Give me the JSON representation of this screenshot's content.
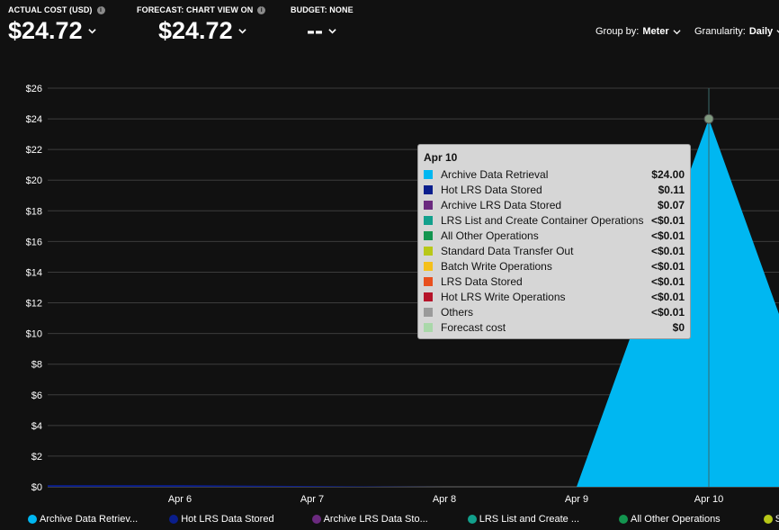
{
  "kpis": [
    {
      "label": "ACTUAL COST (USD)",
      "value": "$24.72",
      "info": true
    },
    {
      "label": "FORECAST: CHART VIEW ON",
      "value": "$24.72",
      "info": true
    },
    {
      "label": "BUDGET: NONE",
      "value": "--",
      "info": false
    }
  ],
  "toolbar": {
    "group_by_label": "Group by:",
    "group_by_value": "Meter",
    "granularity_label": "Granularity:",
    "granularity_value": "Daily"
  },
  "chart_data": {
    "type": "area",
    "y_ticks": [
      "$0",
      "$2",
      "$4",
      "$6",
      "$8",
      "$10",
      "$12",
      "$14",
      "$16",
      "$18",
      "$20",
      "$22",
      "$24",
      "$26"
    ],
    "ylim": [
      0,
      26
    ],
    "x_ticks": [
      "Apr 6",
      "Apr 7",
      "Apr 8",
      "Apr 9",
      "Apr 10"
    ],
    "grid": true,
    "legend_position": "bottom",
    "series": [
      {
        "name": "Archive Data Retrieval",
        "color": "#00b7f1",
        "points": [
          {
            "x": "Apr 9",
            "y": 0
          },
          {
            "x": "Apr 10",
            "y": 24.0
          },
          {
            "x": "Apr 11",
            "y": 0
          }
        ]
      },
      {
        "name": "Hot LRS Data Stored",
        "color": "#0a1e8c",
        "points": [
          {
            "x": "Apr 5",
            "y": 0.11
          },
          {
            "x": "Apr 6",
            "y": 0.11
          },
          {
            "x": "Apr 7",
            "y": 0.05
          },
          {
            "x": "Apr 8",
            "y": 0
          }
        ]
      }
    ],
    "highlight": {
      "x": "Apr 10",
      "y": 24.0
    }
  },
  "tooltip": {
    "title": "Apr 10",
    "rows": [
      {
        "name": "Archive Data Retrieval",
        "value": "$24.00",
        "color": "#00b7f1"
      },
      {
        "name": "Hot LRS Data Stored",
        "value": "$0.11",
        "color": "#0a1e8c"
      },
      {
        "name": "Archive LRS Data Stored",
        "value": "$0.07",
        "color": "#6b2a7f"
      },
      {
        "name": "LRS List and Create Container Operations",
        "value": "<$0.01",
        "color": "#12a08c"
      },
      {
        "name": "All Other Operations",
        "value": "<$0.01",
        "color": "#13954f"
      },
      {
        "name": "Standard Data Transfer Out",
        "value": "<$0.01",
        "color": "#b8c818"
      },
      {
        "name": "Batch Write Operations",
        "value": "<$0.01",
        "color": "#f5c01a"
      },
      {
        "name": "LRS Data Stored",
        "value": "<$0.01",
        "color": "#e8501e"
      },
      {
        "name": "Hot LRS Write Operations",
        "value": "<$0.01",
        "color": "#b5142a"
      },
      {
        "name": "Others",
        "value": "<$0.01",
        "color": "#9a9a9a"
      },
      {
        "name": "Forecast cost",
        "value": "$0",
        "color": "#a9d8a9"
      }
    ]
  },
  "legend": [
    {
      "label": "Archive Data Retriev...",
      "color": "#00b7f1"
    },
    {
      "label": "Hot LRS Data Stored",
      "color": "#0a1e8c"
    },
    {
      "label": "Archive LRS Data Sto...",
      "color": "#6b2a7f"
    },
    {
      "label": "LRS List and Create ...",
      "color": "#12a08c"
    },
    {
      "label": "All Other Operations",
      "color": "#13954f"
    },
    {
      "label": "Standard",
      "color": "#b8c818"
    }
  ]
}
